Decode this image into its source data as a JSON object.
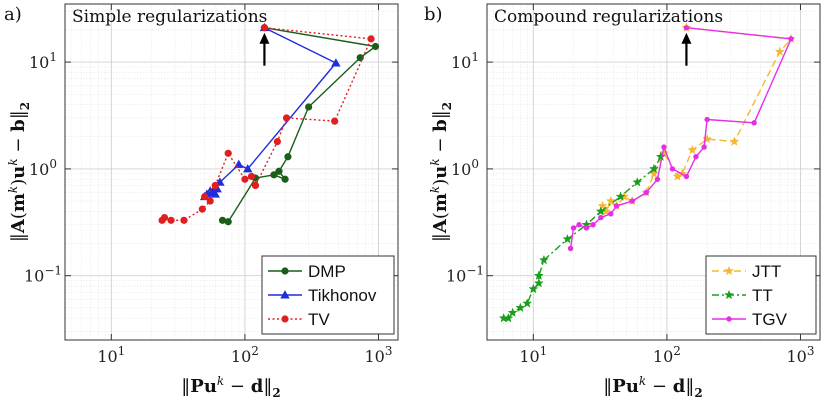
{
  "chart_data": [
    {
      "type": "line",
      "panel_label": "a)",
      "title": "Simple regularizations",
      "xlabel": "‖Pu^k − d‖₂",
      "ylabel": "‖A(m^k)u^k − b‖₂",
      "xscale": "log",
      "yscale": "log",
      "xlim": [
        4.5,
        1400
      ],
      "ylim": [
        0.025,
        35
      ],
      "x_ticks": [
        "10^1",
        "10^2",
        "10^3"
      ],
      "y_ticks": [
        "10^-1",
        "10^0",
        "10^1"
      ],
      "grid": true,
      "legend_position": "bottom-right",
      "annotation": {
        "type": "arrow",
        "x": 140,
        "y": 21
      },
      "series": [
        {
          "name": "DMP",
          "color": "#1a5e1a",
          "line": "solid",
          "marker": "circle",
          "x": [
            140,
            950,
            730,
            300,
            210,
            180,
            200,
            165,
            120,
            75,
            68
          ],
          "y": [
            21,
            14,
            11,
            3.8,
            1.3,
            0.95,
            0.8,
            0.88,
            0.82,
            0.32,
            0.33
          ]
        },
        {
          "name": "Tikhonov",
          "color": "#1f2de0",
          "line": "solid",
          "marker": "triangle",
          "x": [
            140,
            480,
            105,
            90,
            65,
            55,
            60,
            50,
            58,
            62,
            52,
            55
          ],
          "y": [
            21,
            9.8,
            1.0,
            1.1,
            0.75,
            0.62,
            0.58,
            0.55,
            0.6,
            0.65,
            0.58,
            0.6
          ]
        },
        {
          "name": "TV",
          "color": "#e01f1f",
          "line": "dotted",
          "marker": "circle",
          "x": [
            140,
            880,
            470,
            205,
            175,
            120,
            112,
            100,
            75,
            60,
            50,
            55,
            48,
            35,
            28,
            25,
            24
          ],
          "y": [
            21,
            16.5,
            2.8,
            3.0,
            1.8,
            0.7,
            0.85,
            0.8,
            1.4,
            0.7,
            0.55,
            0.5,
            0.42,
            0.33,
            0.33,
            0.35,
            0.33
          ]
        }
      ]
    },
    {
      "type": "line",
      "panel_label": "b)",
      "title": "Compound regularizations",
      "xlabel": "‖Pu^k − d‖₂",
      "ylabel": "‖A(m^k)u^k − b‖₂",
      "xscale": "log",
      "yscale": "log",
      "xlim": [
        4.5,
        1400
      ],
      "ylim": [
        0.025,
        35
      ],
      "x_ticks": [
        "10^1",
        "10^2",
        "10^3"
      ],
      "y_ticks": [
        "10^-1",
        "10^0",
        "10^1"
      ],
      "grid": true,
      "legend_position": "bottom-right",
      "annotation": {
        "type": "arrow",
        "x": 140,
        "y": 21
      },
      "series": [
        {
          "name": "JTT",
          "color": "#f5b731",
          "line": "dashed",
          "marker": "star",
          "x": [
            140,
            850,
            700,
            320,
            200,
            155,
            130,
            120,
            95,
            80,
            70,
            55,
            48,
            42,
            38,
            35,
            33
          ],
          "y": [
            21,
            16.5,
            12.5,
            1.8,
            1.9,
            1.5,
            0.9,
            0.85,
            1.4,
            0.9,
            0.6,
            0.5,
            0.55,
            0.45,
            0.5,
            0.4,
            0.45
          ]
        },
        {
          "name": "TT",
          "color": "#1a9e1a",
          "line": "dashdot",
          "marker": "star",
          "x": [
            90,
            80,
            60,
            45,
            32,
            25,
            18,
            12,
            11,
            11,
            10,
            9,
            8,
            7,
            6.5,
            6
          ],
          "y": [
            1.3,
            1.0,
            0.75,
            0.55,
            0.4,
            0.3,
            0.22,
            0.14,
            0.1,
            0.085,
            0.075,
            0.055,
            0.05,
            0.045,
            0.04,
            0.04
          ]
        },
        {
          "name": "TGV",
          "color": "#e62ee6",
          "line": "solid",
          "marker": "dot",
          "x": [
            140,
            850,
            450,
            200,
            190,
            165,
            140,
            110,
            95,
            85,
            70,
            55,
            42,
            38,
            32,
            28,
            25,
            22,
            20,
            19
          ],
          "y": [
            21,
            16.5,
            2.7,
            2.9,
            1.6,
            1.3,
            0.85,
            1.0,
            1.6,
            0.8,
            0.6,
            0.5,
            0.45,
            0.38,
            0.35,
            0.3,
            0.28,
            0.3,
            0.28,
            0.18
          ]
        }
      ]
    }
  ]
}
